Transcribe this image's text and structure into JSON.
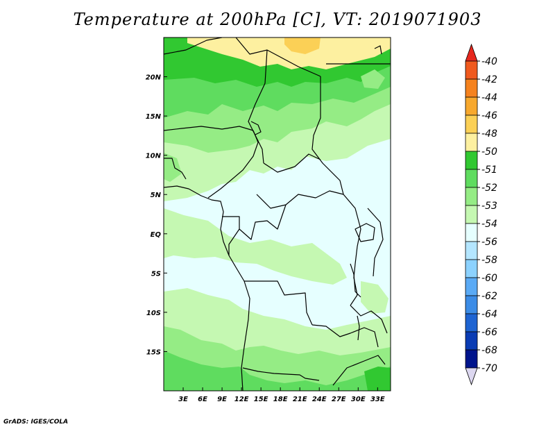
{
  "title": "Temperature at 200hPa [C], VT: 2019071903",
  "credit": "GrADS: IGES/COLA",
  "map": {
    "lon_range": [
      0,
      35
    ],
    "lat_range": [
      -20,
      25
    ],
    "lon_labels": [
      "3E",
      "6E",
      "9E",
      "12E",
      "15E",
      "18E",
      "21E",
      "24E",
      "27E",
      "30E",
      "33E"
    ],
    "lat_labels": [
      "20N",
      "15N",
      "10N",
      "5N",
      "EQ",
      "5S",
      "10S",
      "15S"
    ]
  },
  "colorbar": {
    "labels": [
      "-40",
      "-42",
      "-44",
      "-46",
      "-48",
      "-50",
      "-51",
      "-52",
      "-53",
      "-54",
      "-56",
      "-58",
      "-60",
      "-62",
      "-64",
      "-66",
      "-68",
      "-70"
    ],
    "colors": [
      "#e6281e",
      "#f05a1e",
      "#f5821e",
      "#f7a82d",
      "#fbd056",
      "#fdf0a0",
      "#31c831",
      "#5fdc5f",
      "#95ec85",
      "#c5f8b2",
      "#e6ffff",
      "#b4e6ff",
      "#8cd2ff",
      "#5aaaf5",
      "#3c8ce6",
      "#1e64d2",
      "#0a3cb4",
      "#00148c"
    ],
    "top_arrow_color": "#e6281e",
    "bottom_arrow_color": "#dcd7f0"
  },
  "field_colors": {
    "cold": "#e6ffff",
    "m54": "#c5f8b2",
    "m53": "#95ec85",
    "m52": "#5fdc5f",
    "m51": "#31c831",
    "m50": "#fdf0a0",
    "m48": "#fbd056"
  }
}
